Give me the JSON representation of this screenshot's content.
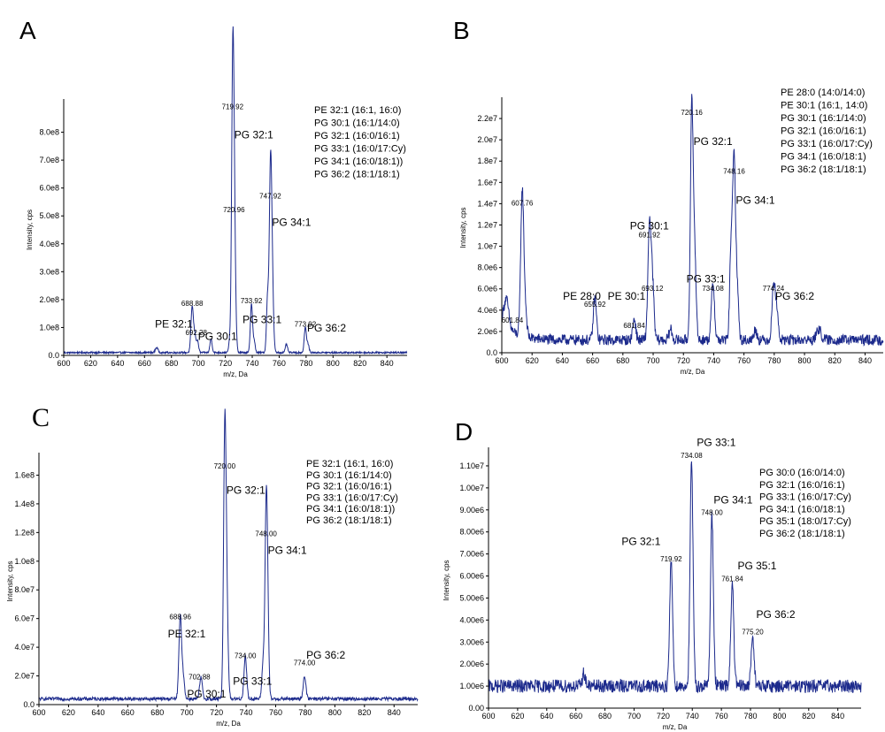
{
  "chart_data": [
    {
      "panel": "A",
      "type": "line",
      "xlabel": "m/z, Da",
      "ylabel": "Intensity, cps",
      "xlim": [
        600,
        855
      ],
      "ylim": [
        0,
        900000000.0
      ],
      "xticks": [
        600,
        620,
        640,
        660,
        680,
        700,
        720,
        740,
        760,
        780,
        800,
        820,
        840
      ],
      "yticks": [
        0,
        100000000.0,
        200000000.0,
        300000000.0,
        400000000.0,
        500000000.0,
        600000000.0,
        700000000.0,
        800000000.0
      ],
      "ytick_labels": [
        "0.0",
        "1.0e8",
        "2.0e8",
        "3.0e8",
        "4.0e8",
        "5.0e8",
        "6.0e8",
        "7.0e8",
        "8.0e8"
      ],
      "baseline": 10000000.0,
      "noise": 3000000.0,
      "peaks": [
        {
          "x": 669,
          "y": 18000000.0,
          "w": 1.0
        },
        {
          "x": 695.4,
          "y": 165000000.0,
          "w": 0.9
        },
        {
          "x": 697.4,
          "y": 60000000.0,
          "w": 0.8
        },
        {
          "x": 699.4,
          "y": 40000000.0,
          "w": 0.8
        },
        {
          "x": 709.4,
          "y": 50000000.0,
          "w": 0.8
        },
        {
          "x": 723.4,
          "y": 45000000.0,
          "w": 0.8
        },
        {
          "x": 725.4,
          "y": 870000000.0,
          "w": 0.8
        },
        {
          "x": 726.4,
          "y": 500000000.0,
          "w": 0.8
        },
        {
          "x": 727.4,
          "y": 140000000.0,
          "w": 0.8
        },
        {
          "x": 739.4,
          "y": 175000000.0,
          "w": 0.8
        },
        {
          "x": 741.4,
          "y": 40000000.0,
          "w": 0.8
        },
        {
          "x": 751.4,
          "y": 200000000.0,
          "w": 0.8
        },
        {
          "x": 753.4,
          "y": 550000000.0,
          "w": 0.8
        },
        {
          "x": 754.4,
          "y": 300000000.0,
          "w": 0.8
        },
        {
          "x": 755.4,
          "y": 100000000.0,
          "w": 0.8
        },
        {
          "x": 765.4,
          "y": 30000000.0,
          "w": 0.8
        },
        {
          "x": 779.4,
          "y": 90000000.0,
          "w": 0.8
        },
        {
          "x": 781.4,
          "y": 30000000.0,
          "w": 0.8
        }
      ],
      "peak_labels": [
        {
          "value": "719.92",
          "x": 725.4,
          "y": 870000000.0,
          "name": "PG 32:1",
          "name_dx": 2,
          "name_dy": 92000000.0
        },
        {
          "value": "747.92",
          "x": 753.4,
          "y": 550000000.0,
          "name": "PG 34:1",
          "name_dx": 2,
          "name_dy": 85000000.0
        },
        {
          "value": "720.96",
          "x": 726.4,
          "y": 500000000.0,
          "name": "",
          "name_dx": 0,
          "name_dy": 0
        },
        {
          "value": "688.88",
          "x": 695.4,
          "y": 165000000.0,
          "name": "PE 32:1",
          "name_dx": -42,
          "name_dy": 65000000.0
        },
        {
          "value": "692.28",
          "x": 698.4,
          "y": 60000000.0,
          "name": "PG 30:1",
          "name_dx": 2,
          "name_dy": 5000000.0
        },
        {
          "value": "733.92",
          "x": 739.4,
          "y": 175000000.0,
          "name": "PG 33:1",
          "name_dx": -10,
          "name_dy": 60000000.0
        },
        {
          "value": "773.92",
          "x": 779.4,
          "y": 90000000.0,
          "name": "PG 36:2",
          "name_dx": 2,
          "name_dy": 5000000.0
        }
      ],
      "legend": [
        "PE 32:1 (16:1, 16:0)",
        "PG 30:1 (16:1/14:0)",
        "PG 32:1 (16:0/16:1)",
        "PG 33:1 (16:0/17:Cy)",
        "PG 34:1 (16:0/18:1))",
        "PG 36:2 (18:1/18:1)"
      ]
    },
    {
      "panel": "B",
      "type": "line",
      "xlabel": "m/z, Da",
      "ylabel": "Intensity, cps",
      "xlim": [
        600,
        852
      ],
      "ylim": [
        0,
        23500000.0
      ],
      "xticks": [
        600,
        620,
        640,
        660,
        680,
        700,
        720,
        740,
        760,
        780,
        800,
        820,
        840
      ],
      "yticks": [
        0,
        2000000.0,
        4000000.0,
        6000000.0,
        8000000.0,
        10000000.0,
        12000000.0,
        14000000.0,
        16000000.0,
        18000000.0,
        20000000.0,
        22000000.0
      ],
      "ytick_labels": [
        "0.0",
        "2.0e6",
        "4.0e6",
        "6.0e6",
        "8.0e6",
        "1.0e7",
        "1.2e7",
        "1.4e7",
        "1.6e7",
        "1.8e7",
        "2.0e7",
        "2.2e7"
      ],
      "baseline": 1200000.0,
      "noise": 500000.0,
      "peaks": [
        {
          "x": 603,
          "y": 2500000.0,
          "w": 1.5
        },
        {
          "x": 613.5,
          "y": 13500000.0,
          "w": 1.0
        },
        {
          "x": 615.5,
          "y": 2500000.0,
          "w": 1.0
        },
        {
          "x": 661.5,
          "y": 4000000.0,
          "w": 1.0
        },
        {
          "x": 687.5,
          "y": 2000000.0,
          "w": 1.0
        },
        {
          "x": 697.5,
          "y": 10500000.0,
          "w": 1.0
        },
        {
          "x": 699.5,
          "y": 5500000.0,
          "w": 1.0
        },
        {
          "x": 711.5,
          "y": 1000000.0,
          "w": 1.0
        },
        {
          "x": 725.5,
          "y": 22000000.0,
          "w": 0.9
        },
        {
          "x": 727.5,
          "y": 8000000.0,
          "w": 0.9
        },
        {
          "x": 739.5,
          "y": 5500000.0,
          "w": 1.0
        },
        {
          "x": 751.5,
          "y": 9000000.0,
          "w": 0.9
        },
        {
          "x": 753.5,
          "y": 16500000.0,
          "w": 0.9
        },
        {
          "x": 755.5,
          "y": 5000000.0,
          "w": 0.9
        },
        {
          "x": 767.5,
          "y": 1000000.0,
          "w": 1.0
        },
        {
          "x": 779.5,
          "y": 5000000.0,
          "w": 1.0
        },
        {
          "x": 781.5,
          "y": 3000000.0,
          "w": 1.0
        },
        {
          "x": 809.5,
          "y": 1000000.0,
          "w": 1.5
        }
      ],
      "peak_labels": [
        {
          "value": "720.16",
          "x": 725.5,
          "y": 22000000.0,
          "name": "PG 32:1",
          "name_dx": 2,
          "name_dy": 2500000.0
        },
        {
          "value": "748.16",
          "x": 753.5,
          "y": 16500000.0,
          "name": "PG 34:1",
          "name_dx": 2,
          "name_dy": 2500000.0
        },
        {
          "value": "607.76",
          "x": 613.5,
          "y": 13500000.0,
          "name": "",
          "name_dx": 0,
          "name_dy": 0
        },
        {
          "value": "691.92",
          "x": 697.5,
          "y": 10500000.0,
          "name": "PG 30:1",
          "name_dx": -22,
          "name_dy": -1100000.0
        },
        {
          "value": "693.12",
          "x": 699.5,
          "y": 5500000.0,
          "name": "",
          "name_dx": 0,
          "name_dy": 0
        },
        {
          "value": "734.08",
          "x": 739.5,
          "y": 5500000.0,
          "name": "PG 33:1",
          "name_dx": -30,
          "name_dy": -1100000.0
        },
        {
          "value": "774.24",
          "x": 779.5,
          "y": 5500000.0,
          "name": "PG 36:2",
          "name_dx": 2,
          "name_dy": 500000.0
        },
        {
          "value": "655.92",
          "x": 661.5,
          "y": 4000000.0,
          "name": "PE 28:0",
          "name_dx": -36,
          "name_dy": -1000000.0
        },
        {
          "value": "681.84",
          "x": 687.5,
          "y": 2000000.0,
          "name": "PE 30:1",
          "name_dx": -30,
          "name_dy": -3000000.0
        },
        {
          "value": "601.84",
          "x": 607,
          "y": 2500000.0,
          "name": "",
          "name_dx": 0,
          "name_dy": 0
        }
      ],
      "legend": [
        "PE 28:0 (14:0/14:0)",
        "PE 30:1 (16:1, 14:0)",
        "PG 30:1 (16:1/14:0)",
        "PG 32:1 (16:0/16:1)",
        "PG 33:1 (16:0/17:Cy)",
        "PG 34:1 (16:0/18:1)",
        "PG 36:2 (18:1/18:1)"
      ]
    },
    {
      "panel": "C",
      "type": "line",
      "xlabel": "m/z, Da",
      "ylabel": "Intensity, cps",
      "xlim": [
        600,
        856
      ],
      "ylim": [
        0,
        172000000.0
      ],
      "xticks": [
        600,
        620,
        640,
        660,
        680,
        700,
        720,
        740,
        760,
        780,
        800,
        820,
        840
      ],
      "yticks": [
        0,
        20000000.0,
        40000000.0,
        60000000.0,
        80000000.0,
        100000000.0,
        120000000.0,
        140000000.0,
        160000000.0
      ],
      "ytick_labels": [
        "0.0",
        "2.0e7",
        "4.0e7",
        "6.0e7",
        "8.0e7",
        "1.0e8",
        "1.2e8",
        "1.4e8",
        "1.6e8"
      ],
      "baseline": 4000000.0,
      "noise": 1200000.0,
      "peaks": [
        {
          "x": 695.5,
          "y": 57000000.0,
          "w": 0.9
        },
        {
          "x": 697.5,
          "y": 15000000.0,
          "w": 0.9
        },
        {
          "x": 709.5,
          "y": 15000000.0,
          "w": 0.9
        },
        {
          "x": 725.5,
          "y": 162000000.0,
          "w": 0.8
        },
        {
          "x": 726.5,
          "y": 70000000.0,
          "w": 0.8
        },
        {
          "x": 727.5,
          "y": 25000000.0,
          "w": 0.8
        },
        {
          "x": 739.5,
          "y": 30000000.0,
          "w": 0.9
        },
        {
          "x": 751.5,
          "y": 25000000.0,
          "w": 0.8
        },
        {
          "x": 753.5,
          "y": 115000000.0,
          "w": 0.8
        },
        {
          "x": 754.5,
          "y": 60000000.0,
          "w": 0.8
        },
        {
          "x": 779.5,
          "y": 16000000.0,
          "w": 0.9
        }
      ],
      "peak_labels": [
        {
          "value": "720.00",
          "x": 725.5,
          "y": 162000000.0,
          "name": "PG 32:1",
          "name_dx": 2,
          "name_dy": 15000000.0
        },
        {
          "value": "748.00",
          "x": 753.5,
          "y": 115000000.0,
          "name": "PG 34:1",
          "name_dx": 2,
          "name_dy": 10000000.0
        },
        {
          "value": "688.96",
          "x": 695.5,
          "y": 57000000.0,
          "name": "PE 32:1",
          "name_dx": -14,
          "name_dy": 10000000.0
        },
        {
          "value": "702.88",
          "x": 708.5,
          "y": 15000000.0,
          "name": "PG 30:1",
          "name_dx": -14,
          "name_dy": 10000000.0
        },
        {
          "value": "734.00",
          "x": 739.5,
          "y": 30000000.0,
          "name": "PG 33:1",
          "name_dx": -14,
          "name_dy": 16000000.0
        },
        {
          "value": "774.00",
          "x": 779.5,
          "y": 25000000.0,
          "name": "PG 36:2",
          "name_dx": 2,
          "name_dy": -7000000.0
        }
      ],
      "legend": [
        "PE 32:1 (16:1, 16:0)",
        "PG 30:1 (16:1/14:0)",
        "PG 32:1 (16:0/16:1)",
        "PG 33:1 (16:0/17:Cy)",
        "PG 34:1 (16:0/18:1))",
        "PG 36:2 (18:1/18:1)"
      ]
    },
    {
      "panel": "D",
      "type": "line",
      "xlabel": "m/z, Da",
      "ylabel": "Intensity, cps",
      "xlim": [
        600,
        856
      ],
      "ylim": [
        0,
        11600000.0
      ],
      "xticks": [
        600,
        620,
        640,
        660,
        680,
        700,
        720,
        740,
        760,
        780,
        800,
        820,
        840
      ],
      "yticks": [
        0,
        1000000.0,
        2000000.0,
        3000000.0,
        4000000.0,
        5000000.0,
        6000000.0,
        7000000.0,
        8000000.0,
        9000000.0,
        10000000.0,
        11000000.0
      ],
      "ytick_labels": [
        "0.00",
        "1.00e6",
        "2.00e6",
        "3.00e6",
        "4.00e6",
        "5.00e6",
        "6.00e6",
        "7.00e6",
        "8.00e6",
        "9.00e6",
        "1.00e7",
        "1.10e7"
      ],
      "baseline": 1000000.0,
      "noise": 300000.0,
      "peaks": [
        {
          "x": 665.5,
          "y": 600000.0,
          "w": 1.0
        },
        {
          "x": 725.5,
          "y": 5700000.0,
          "w": 1.0
        },
        {
          "x": 739.5,
          "y": 10200000.0,
          "w": 1.0
        },
        {
          "x": 753.5,
          "y": 7700000.0,
          "w": 1.0
        },
        {
          "x": 767.5,
          "y": 4700000.0,
          "w": 1.0
        },
        {
          "x": 781.5,
          "y": 2300000.0,
          "w": 1.0
        }
      ],
      "peak_labels": [
        {
          "value": "734.08",
          "x": 739.5,
          "y": 11200000.0,
          "name": "PG 33:1",
          "name_dx": 6,
          "name_dy": -700000.0
        },
        {
          "value": "748.00",
          "x": 753.5,
          "y": 8600000.0,
          "name": "PG 34:1",
          "name_dx": 2,
          "name_dy": -700000.0
        },
        {
          "value": "719.92",
          "x": 725.5,
          "y": 6500000.0,
          "name": "PG 32:1",
          "name_dx": -56,
          "name_dy": -900000.0
        },
        {
          "value": "761.84",
          "x": 767.5,
          "y": 5600000.0,
          "name": "PG 35:1",
          "name_dx": 6,
          "name_dy": -700000.0
        },
        {
          "value": "775.20",
          "x": 781.5,
          "y": 3200000.0,
          "name": "PG 36:2",
          "name_dx": 4,
          "name_dy": -900000.0
        }
      ],
      "legend": [
        "PG 30:0 (16:0/14:0)",
        "PG 32:1 (16:0/16:1)",
        "PG 33:1 (16:0/17:Cy)",
        "PG 34:1 (16:0/18:1)",
        "PG 35:1 (18:0/17:Cy)",
        "PG 36:2 (18:1/18:1)"
      ]
    }
  ]
}
